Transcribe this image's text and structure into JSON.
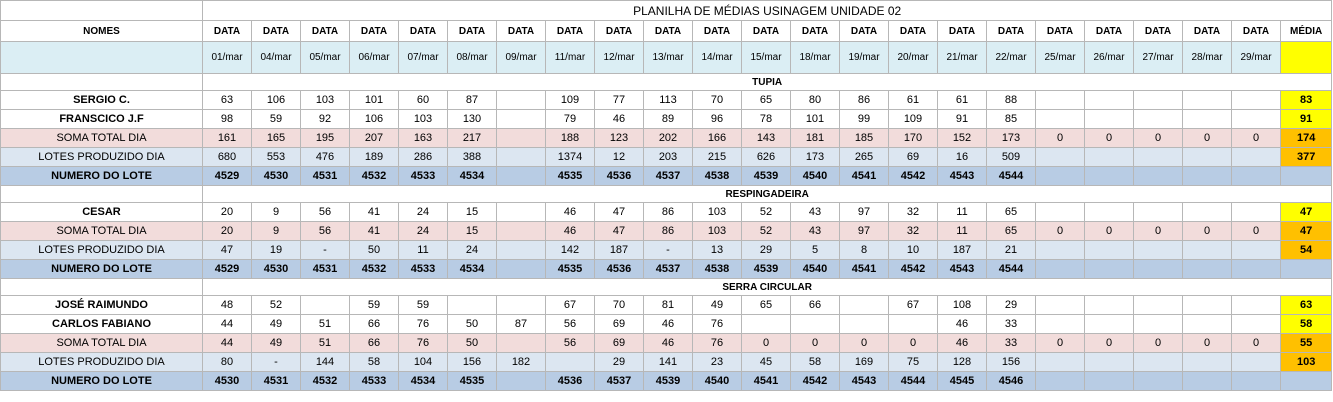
{
  "title": "PLANILHA DE MÉDIAS USINAGEM UNIDADE 02",
  "header": {
    "nomes": "NOMES",
    "data": "DATA",
    "media": "MÉDIA",
    "dates": [
      "01/mar",
      "04/mar",
      "05/mar",
      "06/mar",
      "07/mar",
      "08/mar",
      "09/mar",
      "11/mar",
      "12/mar",
      "13/mar",
      "14/mar",
      "15/mar",
      "18/mar",
      "19/mar",
      "20/mar",
      "21/mar",
      "22/mar",
      "25/mar",
      "26/mar",
      "27/mar",
      "28/mar",
      "29/mar"
    ]
  },
  "sections": [
    {
      "name": "TUPIA",
      "rows": [
        {
          "kind": "name",
          "label": "SERGIO C.",
          "values": [
            "63",
            "106",
            "103",
            "101",
            "60",
            "87",
            "",
            "109",
            "77",
            "113",
            "70",
            "65",
            "80",
            "86",
            "61",
            "61",
            "88",
            "",
            "",
            "",
            "",
            ""
          ],
          "media": "83",
          "media_color": "yellow"
        },
        {
          "kind": "name",
          "label": "FRANSCICO J.F",
          "values": [
            "98",
            "59",
            "92",
            "106",
            "103",
            "130",
            "",
            "79",
            "46",
            "89",
            "96",
            "78",
            "101",
            "99",
            "109",
            "91",
            "85",
            "",
            "",
            "",
            "",
            ""
          ],
          "media": "91",
          "media_color": "yellow"
        },
        {
          "kind": "soma",
          "label": "SOMA TOTAL DIA",
          "values": [
            "161",
            "165",
            "195",
            "207",
            "163",
            "217",
            "",
            "188",
            "123",
            "202",
            "166",
            "143",
            "181",
            "185",
            "170",
            "152",
            "173",
            "0",
            "0",
            "0",
            "0",
            "0"
          ],
          "media": "174",
          "media_color": "orange"
        },
        {
          "kind": "lotes",
          "label": "LOTES PRODUZIDO DIA",
          "values": [
            "680",
            "553",
            "476",
            "189",
            "286",
            "388",
            "",
            "1374",
            "12",
            "203",
            "215",
            "626",
            "173",
            "265",
            "69",
            "16",
            "509",
            "",
            "",
            "",
            "",
            ""
          ],
          "media": "377",
          "media_color": "orange"
        },
        {
          "kind": "numero",
          "label": "NUMERO DO LOTE",
          "values": [
            "4529",
            "4530",
            "4531",
            "4532",
            "4533",
            "4534",
            "",
            "4535",
            "4536",
            "4537",
            "4538",
            "4539",
            "4540",
            "4541",
            "4542",
            "4543",
            "4544",
            "",
            "",
            "",
            "",
            ""
          ],
          "media": "",
          "media_color": "none"
        }
      ]
    },
    {
      "name": "RESPINGADEIRA",
      "rows": [
        {
          "kind": "name",
          "label": "CESAR",
          "values": [
            "20",
            "9",
            "56",
            "41",
            "24",
            "15",
            "",
            "46",
            "47",
            "86",
            "103",
            "52",
            "43",
            "97",
            "32",
            "11",
            "65",
            "",
            "",
            "",
            "",
            ""
          ],
          "media": "47",
          "media_color": "yellow"
        },
        {
          "kind": "soma",
          "label": "SOMA TOTAL DIA",
          "values": [
            "20",
            "9",
            "56",
            "41",
            "24",
            "15",
            "",
            "46",
            "47",
            "86",
            "103",
            "52",
            "43",
            "97",
            "32",
            "11",
            "65",
            "0",
            "0",
            "0",
            "0",
            "0"
          ],
          "media": "47",
          "media_color": "orange"
        },
        {
          "kind": "lotes",
          "label": "LOTES PRODUZIDO DIA",
          "values": [
            "47",
            "19",
            "-",
            "50",
            "11",
            "24",
            "",
            "142",
            "187",
            "-",
            "13",
            "29",
            "5",
            "8",
            "10",
            "187",
            "21",
            "",
            "",
            "",
            "",
            ""
          ],
          "media": "54",
          "media_color": "orange"
        },
        {
          "kind": "numero",
          "label": "NUMERO DO LOTE",
          "values": [
            "4529",
            "4530",
            "4531",
            "4532",
            "4533",
            "4534",
            "",
            "4535",
            "4536",
            "4537",
            "4538",
            "4539",
            "4540",
            "4541",
            "4542",
            "4543",
            "4544",
            "",
            "",
            "",
            "",
            ""
          ],
          "media": "",
          "media_color": "none"
        }
      ]
    },
    {
      "name": "SERRA CIRCULAR",
      "rows": [
        {
          "kind": "name",
          "label": "JOSÉ RAIMUNDO",
          "values": [
            "48",
            "52",
            "",
            "59",
            "59",
            "",
            "",
            "67",
            "70",
            "81",
            "49",
            "65",
            "66",
            "",
            "67",
            "108",
            "29",
            "",
            "",
            "",
            "",
            ""
          ],
          "media": "63",
          "media_color": "yellow"
        },
        {
          "kind": "name",
          "label": "CARLOS FABIANO",
          "values": [
            "44",
            "49",
            "51",
            "66",
            "76",
            "50",
            "87",
            "56",
            "69",
            "46",
            "76",
            "",
            "",
            "",
            "",
            "46",
            "33",
            "",
            "",
            "",
            "",
            ""
          ],
          "media": "58",
          "media_color": "yellow"
        },
        {
          "kind": "soma",
          "label": "SOMA TOTAL DIA",
          "values": [
            "44",
            "49",
            "51",
            "66",
            "76",
            "50",
            "",
            "56",
            "69",
            "46",
            "76",
            "0",
            "0",
            "0",
            "0",
            "46",
            "33",
            "0",
            "0",
            "0",
            "0",
            "0"
          ],
          "media": "55",
          "media_color": "orange"
        },
        {
          "kind": "lotes",
          "label": "LOTES PRODUZIDO DIA",
          "values": [
            "80",
            "-",
            "144",
            "58",
            "104",
            "156",
            "182",
            "",
            "29",
            "141",
            "23",
            "45",
            "58",
            "169",
            "75",
            "128",
            "156",
            "",
            "",
            "",
            "",
            ""
          ],
          "media": "103",
          "media_color": "orange"
        },
        {
          "kind": "numero",
          "label": "NUMERO DO LOTE",
          "values": [
            "4530",
            "4531",
            "4532",
            "4533",
            "4534",
            "4535",
            "",
            "4536",
            "4537",
            "4539",
            "4540",
            "4541",
            "4542",
            "4543",
            "4544",
            "4545",
            "4546",
            "",
            "",
            "",
            "",
            ""
          ],
          "media": "",
          "media_color": "none"
        }
      ]
    }
  ]
}
